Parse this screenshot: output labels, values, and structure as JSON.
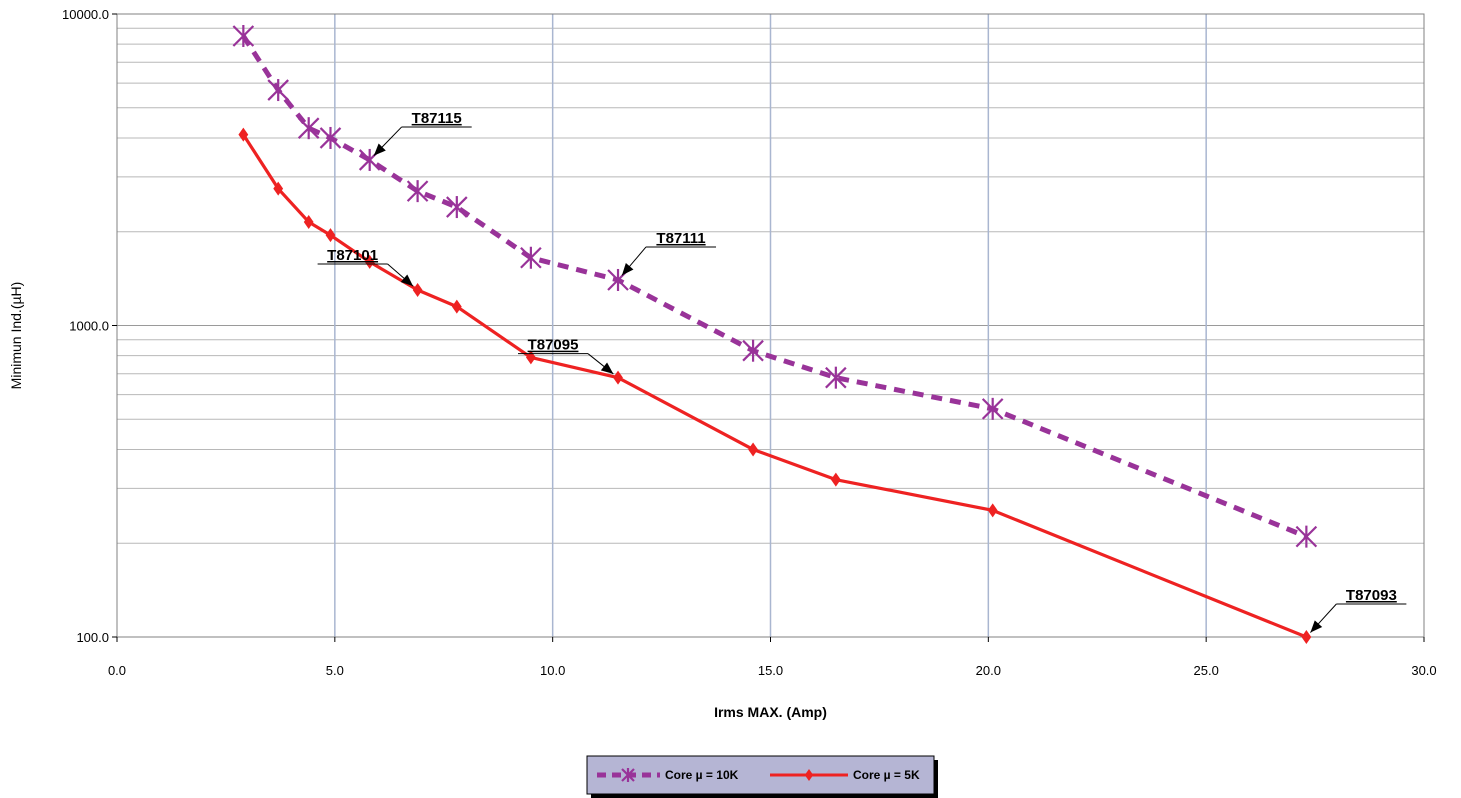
{
  "chart_data": {
    "type": "line",
    "xlabel": "Irms MAX. (Amp)",
    "ylabel": "Minimun Ind.(µH)",
    "xlim": [
      0,
      30
    ],
    "ylim": [
      100,
      10000
    ],
    "yscale": "log",
    "grid": true,
    "x_ticks": [
      "0.0",
      "5.0",
      "10.0",
      "15.0",
      "20.0",
      "25.0",
      "30.0"
    ],
    "y_ticks": [
      "100.0",
      "1000.0",
      "10000.0"
    ],
    "legend_position": "bottom",
    "series": [
      {
        "name": "Core µ = 10K",
        "color": "#993399",
        "style": "dashed",
        "marker": "asterisk",
        "x": [
          2.9,
          3.7,
          4.4,
          4.9,
          5.8,
          6.9,
          7.8,
          9.5,
          11.5,
          14.6,
          16.5,
          20.1,
          27.3
        ],
        "y": [
          8500,
          5700,
          4300,
          4000,
          3400,
          2700,
          2400,
          1650,
          1400,
          830,
          680,
          540,
          210
        ]
      },
      {
        "name": "Core µ = 5K",
        "color": "#ee2222",
        "style": "solid",
        "marker": "diamond",
        "x": [
          2.9,
          3.7,
          4.4,
          4.9,
          5.8,
          6.9,
          7.8,
          9.5,
          11.5,
          14.6,
          16.5,
          20.1,
          27.3
        ],
        "y": [
          4100,
          2750,
          2150,
          1950,
          1600,
          1300,
          1150,
          790,
          680,
          400,
          320,
          255,
          100
        ]
      }
    ],
    "annotations": [
      {
        "text": "T87115",
        "x": 5.8,
        "y": 3400
      },
      {
        "text": "T87111",
        "x": 11.5,
        "y": 1400
      },
      {
        "text": "T87101",
        "x": 6.9,
        "y": 1300
      },
      {
        "text": "T87095",
        "x": 11.5,
        "y": 680
      },
      {
        "text": "T87093",
        "x": 27.3,
        "y": 100
      }
    ]
  }
}
